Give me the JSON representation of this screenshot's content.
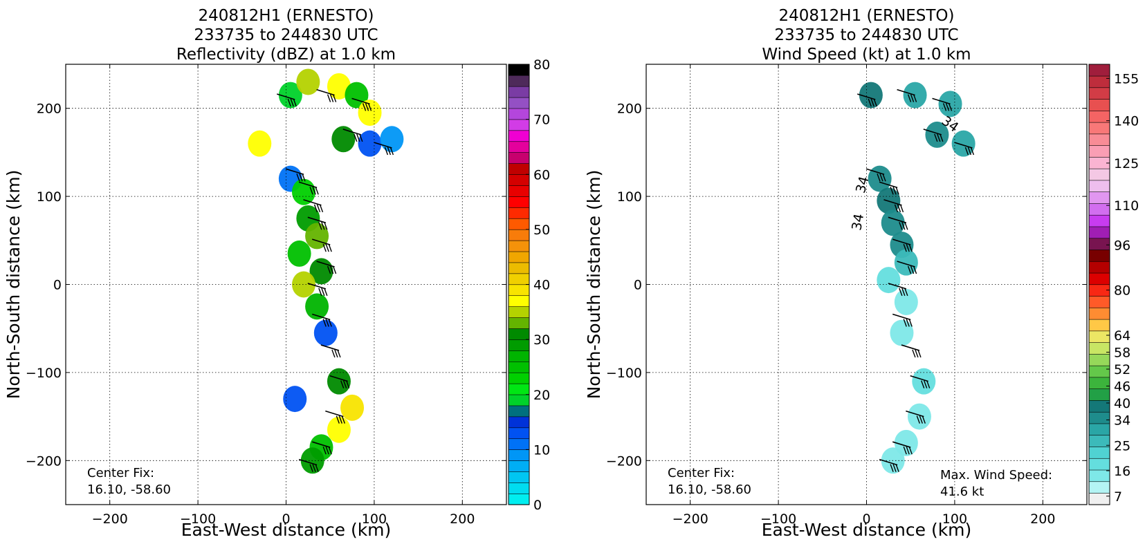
{
  "chart_data": [
    {
      "type": "heatmap",
      "title_lines": [
        "240812H1 (ERNESTO)",
        "233735 to 244830 UTC",
        "Reflectivity (dBZ) at 1.0 km"
      ],
      "xlabel": "East-West distance (km)",
      "ylabel": "North-South distance (km)",
      "xlim": [
        -250,
        250
      ],
      "ylim": [
        -250,
        250
      ],
      "xticks": [
        -200,
        -100,
        0,
        100,
        200
      ],
      "yticks": [
        -200,
        -100,
        0,
        100,
        200
      ],
      "grid": "dotted",
      "annotations": [
        "Center Fix:",
        "16.10, -58.60"
      ],
      "colorbar": {
        "vmin": 0,
        "vmax": 80,
        "ticks": [
          0,
          10,
          20,
          30,
          40,
          50,
          60,
          70,
          80
        ],
        "colors": [
          "#00eef0",
          "#00dcf0",
          "#00c6f2",
          "#00aef4",
          "#0096f6",
          "#0072f6",
          "#0052f2",
          "#0032d8",
          "#00707e",
          "#00d22a",
          "#00e614",
          "#00d000",
          "#00c000",
          "#00b400",
          "#009c00",
          "#008a00",
          "#64b400",
          "#b4d200",
          "#ffff00",
          "#f8e400",
          "#f0d000",
          "#ecbc00",
          "#f0a600",
          "#f4920a",
          "#f87c0a",
          "#ff5a00",
          "#ff2a00",
          "#ff0000",
          "#e80000",
          "#d40000",
          "#c00000",
          "#c8006e",
          "#e4009c",
          "#f000d2",
          "#d23ce6",
          "#b446dc",
          "#9450c4",
          "#7a3ca4",
          "#4e2a5a",
          "#000000"
        ]
      },
      "series": [
        {
          "x": 5,
          "y": 215,
          "value": 18
        },
        {
          "x": 25,
          "y": 230,
          "value": 34
        },
        {
          "x": 60,
          "y": 225,
          "value": 37
        },
        {
          "x": 80,
          "y": 215,
          "value": 25
        },
        {
          "x": 95,
          "y": 195,
          "value": 36
        },
        {
          "x": 65,
          "y": 165,
          "value": 30
        },
        {
          "x": 95,
          "y": 160,
          "value": 12
        },
        {
          "x": 120,
          "y": 165,
          "value": 8
        },
        {
          "x": -30,
          "y": 160,
          "value": 37
        },
        {
          "x": 5,
          "y": 120,
          "value": 10
        },
        {
          "x": 20,
          "y": 105,
          "value": 22
        },
        {
          "x": 25,
          "y": 75,
          "value": 28
        },
        {
          "x": 35,
          "y": 55,
          "value": 33
        },
        {
          "x": 15,
          "y": 35,
          "value": 24
        },
        {
          "x": 40,
          "y": 15,
          "value": 30
        },
        {
          "x": 20,
          "y": 0,
          "value": 35
        },
        {
          "x": 35,
          "y": -25,
          "value": 26
        },
        {
          "x": 45,
          "y": -55,
          "value": 12
        },
        {
          "x": 60,
          "y": -110,
          "value": 30
        },
        {
          "x": 75,
          "y": -140,
          "value": 38
        },
        {
          "x": 60,
          "y": -165,
          "value": 36
        },
        {
          "x": 40,
          "y": -185,
          "value": 24
        },
        {
          "x": 30,
          "y": -200,
          "value": 28
        },
        {
          "x": 10,
          "y": -130,
          "value": 12
        }
      ],
      "wind_barbs": [
        {
          "x": 10,
          "y": 210
        },
        {
          "x": 55,
          "y": 215
        },
        {
          "x": 95,
          "y": 205
        },
        {
          "x": 85,
          "y": 170
        },
        {
          "x": 120,
          "y": 155
        },
        {
          "x": 20,
          "y": 125
        },
        {
          "x": 35,
          "y": 110
        },
        {
          "x": 40,
          "y": 90
        },
        {
          "x": 45,
          "y": 70
        },
        {
          "x": 50,
          "y": 45
        },
        {
          "x": 55,
          "y": 20
        },
        {
          "x": 45,
          "y": -5
        },
        {
          "x": 50,
          "y": -40
        },
        {
          "x": 60,
          "y": -75
        },
        {
          "x": 70,
          "y": -110
        },
        {
          "x": 65,
          "y": -150
        },
        {
          "x": 50,
          "y": -185
        },
        {
          "x": 35,
          "y": -205
        }
      ]
    },
    {
      "type": "heatmap",
      "title_lines": [
        "240812H1 (ERNESTO)",
        "233735 to 244830 UTC",
        "Wind Speed (kt) at 1.0 km"
      ],
      "xlabel": "East-West distance (km)",
      "ylabel": "North-South distance (km)",
      "xlim": [
        -250,
        250
      ],
      "ylim": [
        -250,
        250
      ],
      "xticks": [
        -200,
        -100,
        0,
        100,
        200
      ],
      "yticks": [
        -200,
        -100,
        0,
        100,
        200
      ],
      "grid": "dotted",
      "annotations": [
        "Center Fix:",
        "16.10, -58.60",
        "Max. Wind Speed:",
        "41.6 kt"
      ],
      "contour_labels": [
        "34",
        "34",
        "34"
      ],
      "colorbar": {
        "vmin": 4,
        "vmax": 160,
        "ticks": [
          7,
          16,
          25,
          34,
          40,
          46,
          52,
          58,
          64,
          80,
          96,
          110,
          125,
          140,
          155
        ],
        "colors": [
          "#f0f0f0",
          "#b4f4f4",
          "#7ee8e8",
          "#64dede",
          "#50d2d2",
          "#3cbaba",
          "#2aa6a6",
          "#1e8c8c",
          "#147878",
          "#22a046",
          "#3cb43c",
          "#64c84a",
          "#96d85a",
          "#c8e664",
          "#ece664",
          "#ffc846",
          "#ff8c32",
          "#ff5a28",
          "#f82814",
          "#dc0000",
          "#b40000",
          "#780000",
          "#781450",
          "#a01eb4",
          "#c83cf0",
          "#d26ef0",
          "#e196f0",
          "#eebeee",
          "#f4c8e4",
          "#fab4d2",
          "#fa9eb4",
          "#f88c96",
          "#f87878",
          "#f46464",
          "#e85050",
          "#d23c46",
          "#be2d3c",
          "#a01e3c"
        ]
      },
      "series": [
        {
          "x": 5,
          "y": 215,
          "value": 38
        },
        {
          "x": 55,
          "y": 215,
          "value": 32
        },
        {
          "x": 95,
          "y": 205,
          "value": 30
        },
        {
          "x": 80,
          "y": 170,
          "value": 34
        },
        {
          "x": 110,
          "y": 160,
          "value": 30
        },
        {
          "x": 15,
          "y": 120,
          "value": 36
        },
        {
          "x": 25,
          "y": 95,
          "value": 37
        },
        {
          "x": 30,
          "y": 70,
          "value": 35
        },
        {
          "x": 40,
          "y": 45,
          "value": 33
        },
        {
          "x": 45,
          "y": 25,
          "value": 28
        },
        {
          "x": 25,
          "y": 5,
          "value": 18
        },
        {
          "x": 45,
          "y": -20,
          "value": 16
        },
        {
          "x": 40,
          "y": -55,
          "value": 14
        },
        {
          "x": 65,
          "y": -110,
          "value": 17
        },
        {
          "x": 60,
          "y": -150,
          "value": 15
        },
        {
          "x": 45,
          "y": -180,
          "value": 16
        },
        {
          "x": 30,
          "y": -200,
          "value": 14
        }
      ],
      "wind_barbs": [
        {
          "x": 10,
          "y": 210
        },
        {
          "x": 55,
          "y": 215
        },
        {
          "x": 95,
          "y": 205
        },
        {
          "x": 85,
          "y": 170
        },
        {
          "x": 120,
          "y": 155
        },
        {
          "x": 20,
          "y": 125
        },
        {
          "x": 35,
          "y": 110
        },
        {
          "x": 40,
          "y": 90
        },
        {
          "x": 45,
          "y": 70
        },
        {
          "x": 50,
          "y": 45
        },
        {
          "x": 55,
          "y": 20
        },
        {
          "x": 45,
          "y": -5
        },
        {
          "x": 50,
          "y": -40
        },
        {
          "x": 60,
          "y": -75
        },
        {
          "x": 70,
          "y": -110
        },
        {
          "x": 65,
          "y": -150
        },
        {
          "x": 50,
          "y": -185
        },
        {
          "x": 35,
          "y": -205
        }
      ]
    }
  ]
}
